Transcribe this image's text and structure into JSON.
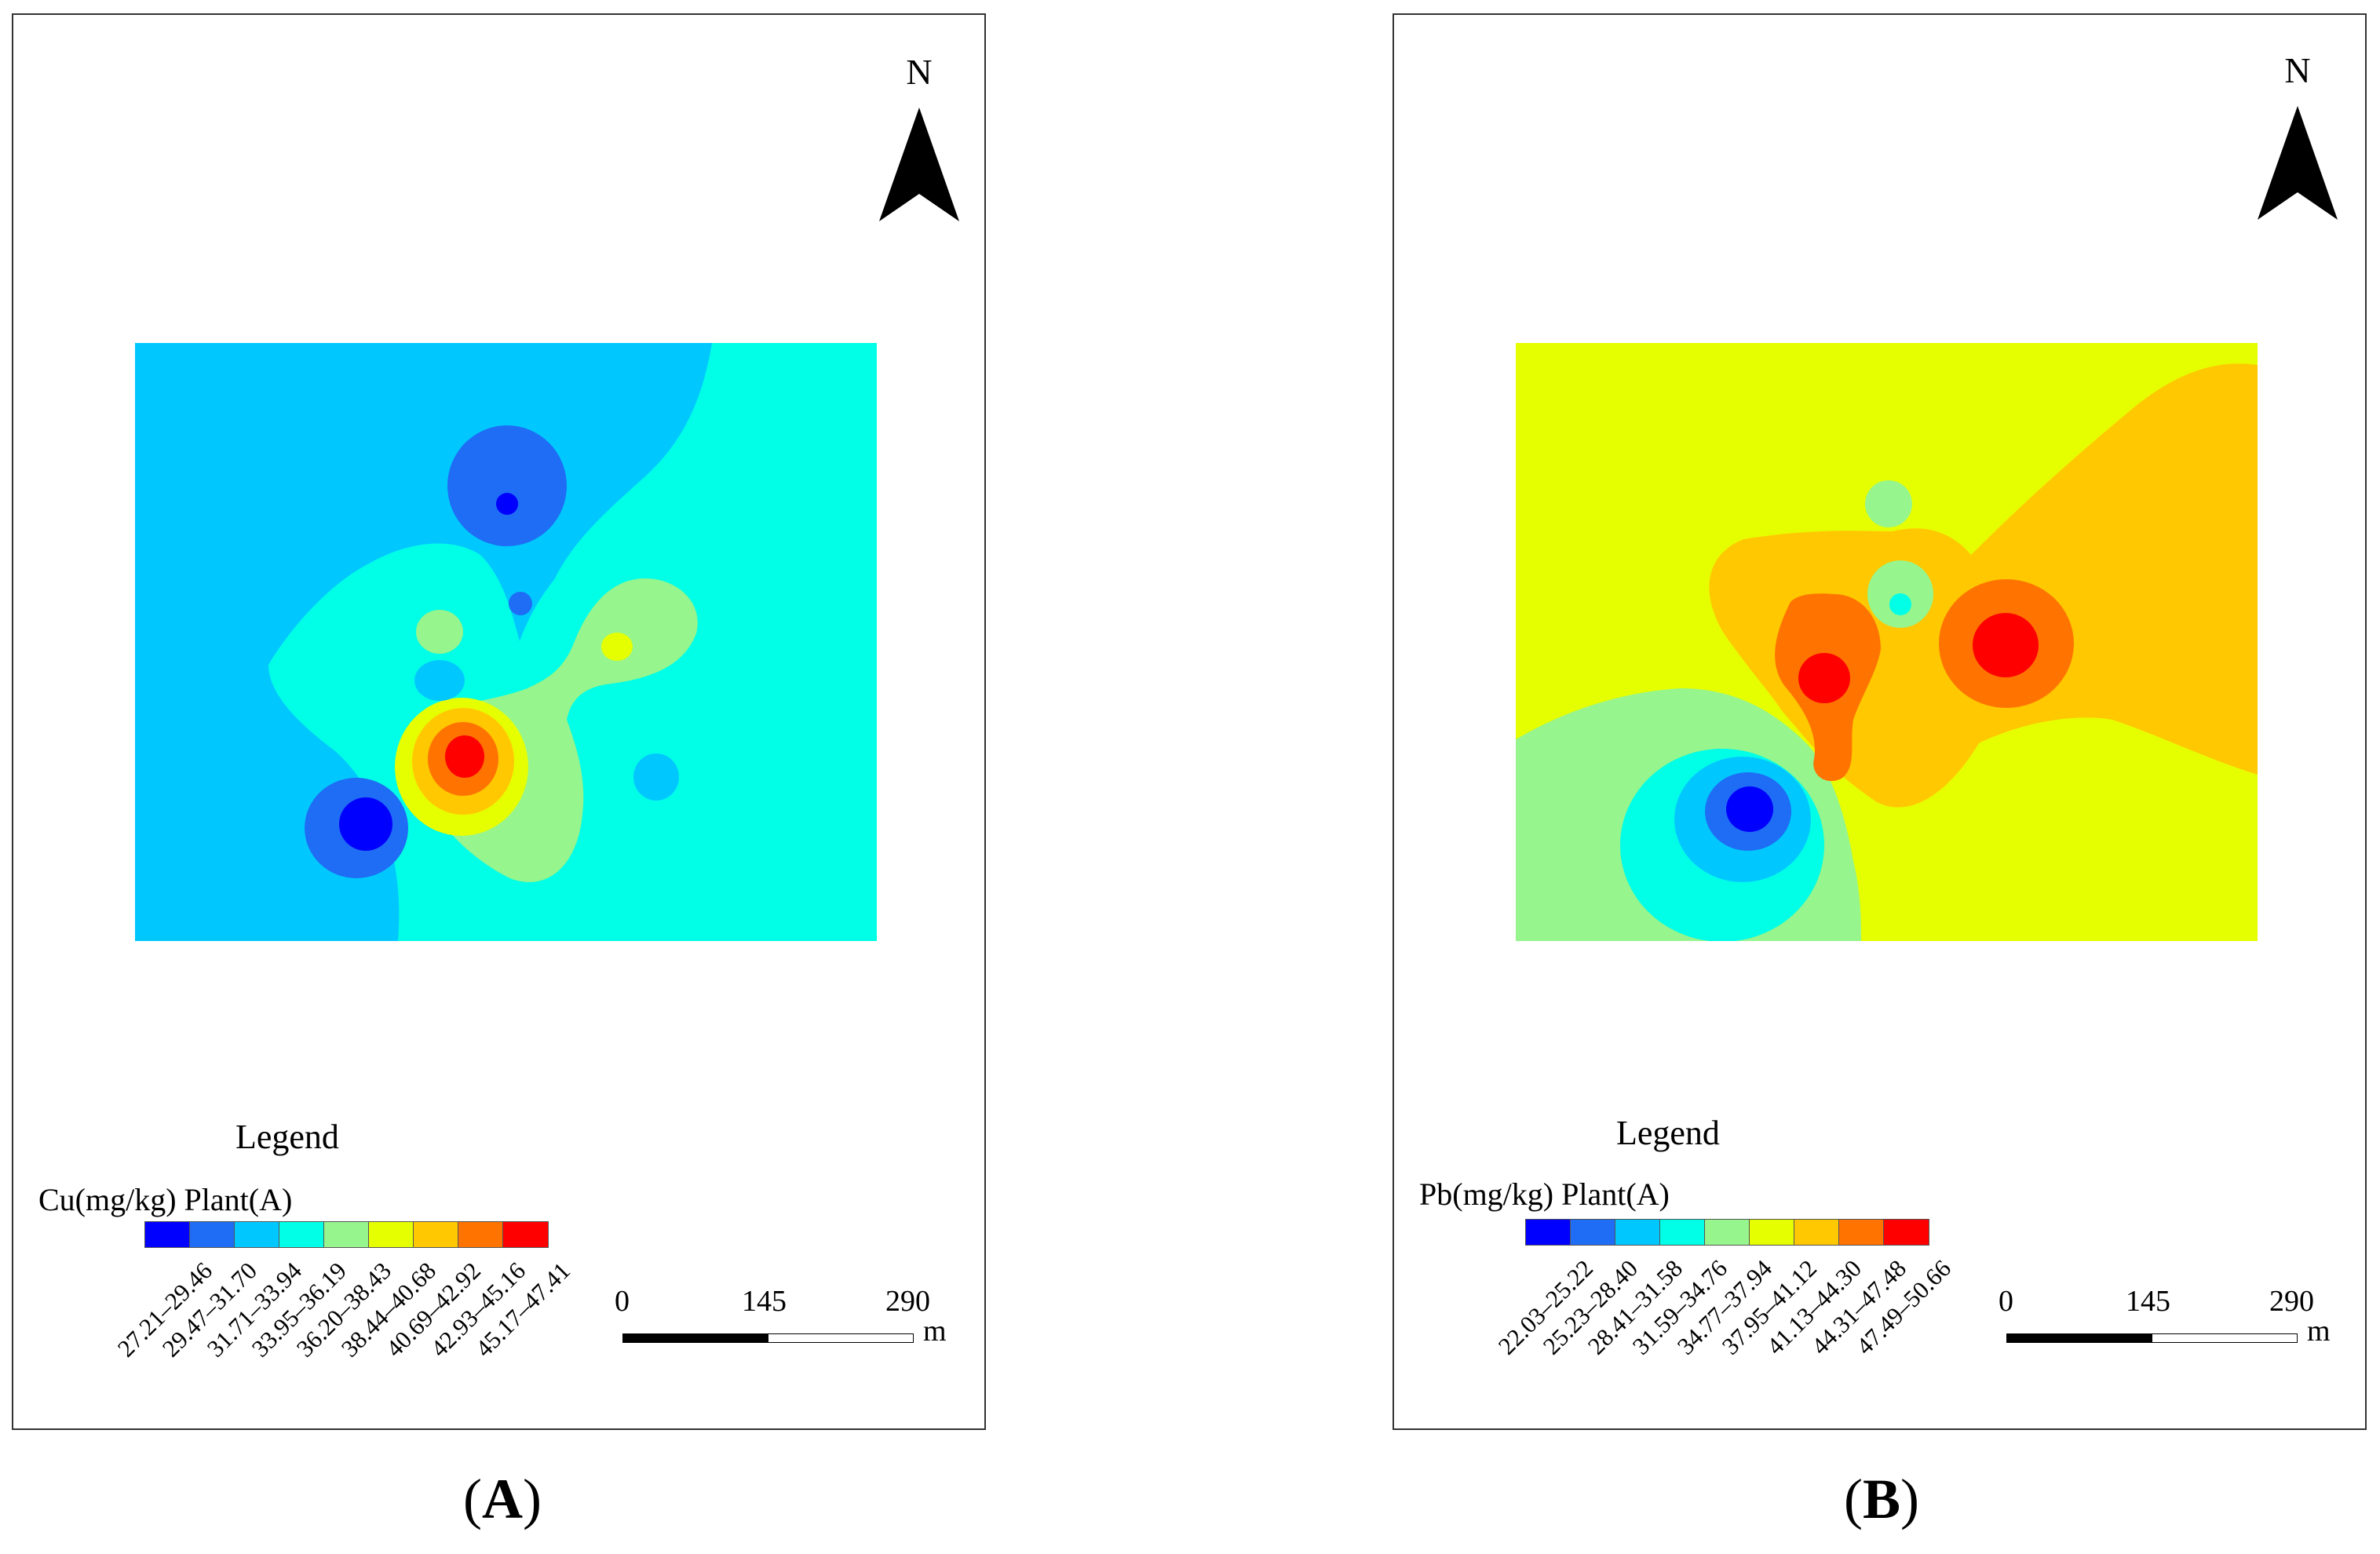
{
  "panels": [
    {
      "caption_letter": "A",
      "north_label": "N",
      "legend_title": "Legend",
      "legend_subtitle": "Cu(mg/kg) Plant(A)",
      "legend_classes": [
        {
          "label": "27.21–29.46",
          "color": "#0000ff"
        },
        {
          "label": "29.47–31.70",
          "color": "#1f6cf5"
        },
        {
          "label": "31.71–33.94",
          "color": "#00c8ff"
        },
        {
          "label": "33.95–36.19",
          "color": "#00ffe6"
        },
        {
          "label": "36.20–38.43",
          "color": "#96f58c"
        },
        {
          "label": "38.44–40.68",
          "color": "#e6ff00"
        },
        {
          "label": "40.69–42.92",
          "color": "#ffc800"
        },
        {
          "label": "42.93–45.16",
          "color": "#ff7300"
        },
        {
          "label": "45.17–47.41",
          "color": "#ff0000"
        }
      ],
      "scale_ticks": [
        "0",
        "145",
        "290"
      ],
      "scale_unit": "m"
    },
    {
      "caption_letter": "B",
      "north_label": "N",
      "legend_title": "Legend",
      "legend_subtitle": "Pb(mg/kg) Plant(A)",
      "legend_classes": [
        {
          "label": "22.03–25.22",
          "color": "#0000ff"
        },
        {
          "label": "25.23–28.40",
          "color": "#1f6cf5"
        },
        {
          "label": "28.41–31.58",
          "color": "#00c8ff"
        },
        {
          "label": "31.59–34.76",
          "color": "#00ffe6"
        },
        {
          "label": "34.77–37.94",
          "color": "#96f58c"
        },
        {
          "label": "37.95–41.12",
          "color": "#e6ff00"
        },
        {
          "label": "41.13–44.30",
          "color": "#ffc800"
        },
        {
          "label": "44.31–47.48",
          "color": "#ff7300"
        },
        {
          "label": "47.49–50.66",
          "color": "#ff0000"
        }
      ],
      "scale_ticks": [
        "0",
        "145",
        "290"
      ],
      "scale_unit": "m"
    }
  ]
}
